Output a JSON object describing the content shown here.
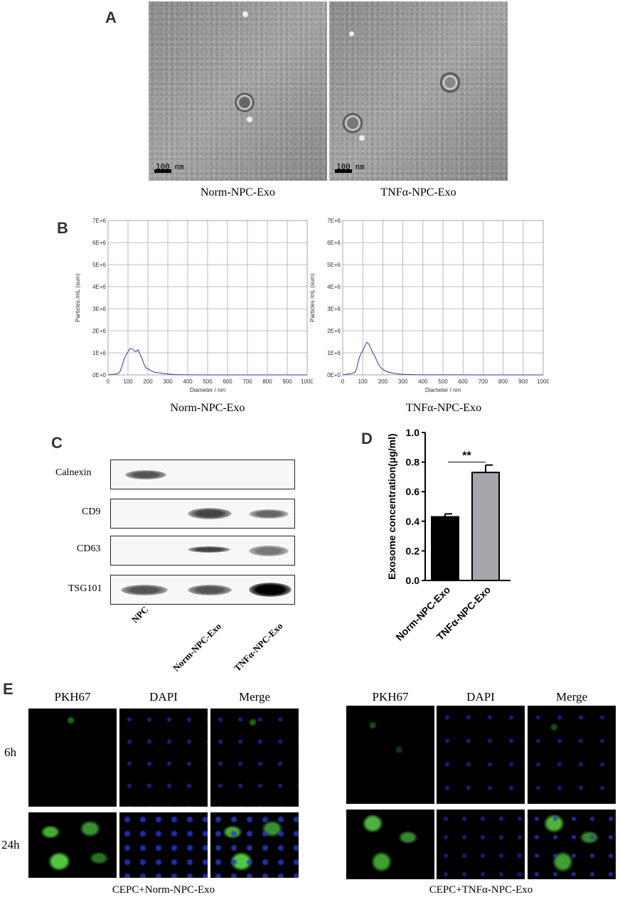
{
  "panels": {
    "A": "A",
    "B": "B",
    "C": "C",
    "D": "D",
    "E": "E"
  },
  "tem": {
    "left_label": "Norm-NPC-Exo",
    "right_label": "TNFα-NPC-Exo",
    "scale_text": "100 nm"
  },
  "nta": {
    "left_label": "Norm-NPC-Exo",
    "right_label": "TNFα-NPC-Exo",
    "charts": [
      {
        "type": "line",
        "xlabel": "Diameter / nm",
        "ylabel": "Particles /mL (sum)",
        "xlim": [
          0,
          1000
        ],
        "ylim": [
          0,
          7000000
        ],
        "xticks": [
          0,
          100,
          200,
          300,
          400,
          500,
          600,
          700,
          800,
          900,
          1000
        ],
        "yticks": [
          "0E+0",
          "1E+6",
          "2E+6",
          "3E+6",
          "4E+6",
          "5E+6",
          "6E+6",
          "7E+6"
        ],
        "series": [
          {
            "color": "#3333aa",
            "x": [
              0,
              30,
              50,
              60,
              70,
              80,
              90,
              100,
              110,
              120,
              130,
              140,
              150,
              160,
              170,
              180,
              190,
              200,
              220,
              240,
              260,
              280,
              300,
              330,
              360,
              400,
              500,
              700,
              1000
            ],
            "y": [
              0,
              30000,
              60000,
              150000,
              400000,
              700000,
              900000,
              1050000,
              1200000,
              1180000,
              1100000,
              1050000,
              1150000,
              950000,
              750000,
              500000,
              320000,
              280000,
              160000,
              110000,
              90000,
              60000,
              40000,
              20000,
              10000,
              5000,
              2000,
              1000,
              0
            ]
          }
        ]
      },
      {
        "type": "line",
        "xlabel": "Diameter / nm",
        "ylabel": "Particles /mL (sum)",
        "xlim": [
          0,
          1000
        ],
        "ylim": [
          0,
          7000000
        ],
        "xticks": [
          0,
          100,
          200,
          300,
          400,
          500,
          600,
          700,
          800,
          900,
          1000
        ],
        "yticks": [
          "0E+0",
          "1E+6",
          "2E+6",
          "3E+6",
          "4E+6",
          "5E+6",
          "6E+6",
          "7E+6"
        ],
        "series": [
          {
            "color": "#3333aa",
            "x": [
              0,
              30,
              50,
              60,
              70,
              80,
              90,
              100,
              110,
              120,
              130,
              140,
              150,
              160,
              170,
              180,
              190,
              200,
              220,
              240,
              260,
              280,
              300,
              330,
              360,
              400,
              500,
              700,
              1000
            ],
            "y": [
              0,
              40000,
              80000,
              100000,
              300000,
              700000,
              950000,
              1100000,
              1300000,
              1480000,
              1400000,
              1200000,
              1000000,
              850000,
              650000,
              450000,
              330000,
              250000,
              150000,
              100000,
              60000,
              40000,
              25000,
              15000,
              10000,
              5000,
              3000,
              1000,
              0
            ]
          }
        ]
      }
    ]
  },
  "western": {
    "rows": [
      "Calnexin",
      "CD9",
      "CD63",
      "TSG101"
    ],
    "lanes": [
      "NPC",
      "Norm-NPC-Exo",
      "TNFα-NPC-Exo"
    ]
  },
  "chart_data": {
    "type": "bar",
    "categories": [
      "Norm-NPC-Exo",
      "TNFα-NPC-Exo"
    ],
    "values": [
      0.43,
      0.73
    ],
    "errors": [
      0.02,
      0.05
    ],
    "colors": [
      "#000000",
      "#a6a6ad"
    ],
    "ylabel": "Exosome concentration(μg/ml)",
    "ylim": [
      0,
      1.0
    ],
    "yticks": [
      "0.0",
      "0.2",
      "0.4",
      "0.6",
      "0.8",
      "1.0"
    ],
    "significance": "**"
  },
  "fluorescence": {
    "columns": [
      "PKH67",
      "DAPI",
      "Merge"
    ],
    "rows": [
      "6h",
      "24h"
    ],
    "left_caption": "CEPC+Norm-NPC-Exo",
    "right_caption": "CEPC+TNFα-NPC-Exo"
  }
}
